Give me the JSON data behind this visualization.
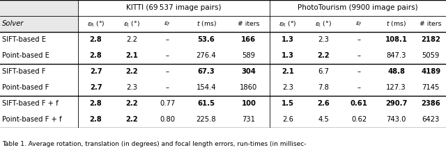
{
  "title_kitti": "KITTI (69 537 image pairs)",
  "title_photo": "PhotoTourism (9900 image pairs)",
  "rows": [
    [
      "SIFT-based E",
      "2.8",
      "2.2",
      "–",
      "53.6",
      "166",
      "1.3",
      "2.3",
      "–",
      "108.1",
      "2182"
    ],
    [
      "Point-based E",
      "2.8",
      "2.1",
      "–",
      "276.4",
      "589",
      "1.3",
      "2.2",
      "–",
      "847.3",
      "5059"
    ],
    [
      "SIFT-based F",
      "2.7",
      "2.2",
      "–",
      "67.3",
      "304",
      "2.1",
      "6.7",
      "–",
      "48.8",
      "4189"
    ],
    [
      "Point-based F",
      "2.7",
      "2.3",
      "–",
      "154.4",
      "1860",
      "2.3",
      "7.8",
      "–",
      "127.3",
      "7145"
    ],
    [
      "SIFT-based F + f",
      "2.8",
      "2.2",
      "0.77",
      "61.5",
      "100",
      "1.5",
      "2.6",
      "0.61",
      "290.7",
      "2386"
    ],
    [
      "Point-based F + f",
      "2.8",
      "2.2",
      "0.80",
      "225.8",
      "731",
      "2.6",
      "4.5",
      "0.62",
      "743.0",
      "6423"
    ]
  ],
  "bold_map": {
    "0": [
      1,
      4,
      5,
      6,
      9,
      10
    ],
    "1": [
      1,
      2,
      6,
      7
    ],
    "2": [
      1,
      2,
      4,
      5,
      6,
      9,
      10
    ],
    "3": [
      1
    ],
    "4": [
      1,
      2,
      4,
      5,
      6,
      7,
      8,
      9,
      10
    ],
    "5": [
      1,
      2
    ]
  },
  "caption": "Table 1. Average rotation, translation (in degrees) and focal length errors, run-times (in millisec-",
  "col_bounds": [
    0.0,
    0.175,
    0.255,
    0.335,
    0.415,
    0.51,
    0.605,
    0.685,
    0.765,
    0.845,
    0.932,
    1.0
  ],
  "gray_bg": "#e8e8e8",
  "white_bg": "#ffffff",
  "fs_data": 7.2,
  "fs_header": 7.5,
  "fs_caption": 6.5
}
